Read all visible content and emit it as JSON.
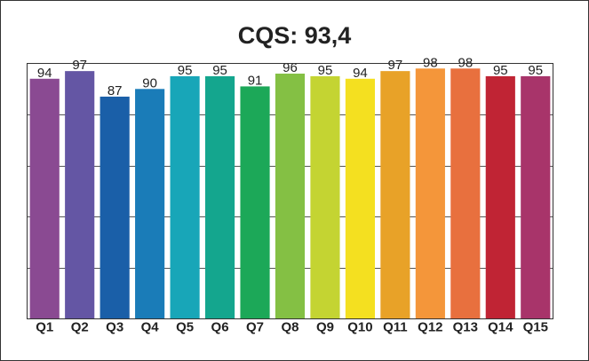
{
  "chart_data": {
    "type": "bar",
    "title": "CQS: 93,4",
    "xlabel": "",
    "ylabel": "",
    "categories": [
      "Q1",
      "Q2",
      "Q3",
      "Q4",
      "Q5",
      "Q6",
      "Q7",
      "Q8",
      "Q9",
      "Q10",
      "Q11",
      "Q12",
      "Q13",
      "Q14",
      "Q15"
    ],
    "values": [
      94,
      97,
      87,
      90,
      95,
      95,
      91,
      96,
      95,
      94,
      97,
      98,
      98,
      95,
      95
    ],
    "value_labels": [
      "94",
      "97",
      "87",
      "90",
      "95",
      "95",
      "91",
      "96",
      "95",
      "94",
      "97",
      "98",
      "98",
      "95",
      "95"
    ],
    "colors": [
      "#8A4A92",
      "#6456A4",
      "#1A5FA8",
      "#1A7CB8",
      "#18A6B8",
      "#14A68E",
      "#1CA858",
      "#84C044",
      "#C4D432",
      "#F4E020",
      "#E8A228",
      "#F4963A",
      "#E8703E",
      "#C02434",
      "#A8346A"
    ],
    "ylim": [
      0,
      100
    ],
    "grid": true,
    "legend": "none"
  }
}
